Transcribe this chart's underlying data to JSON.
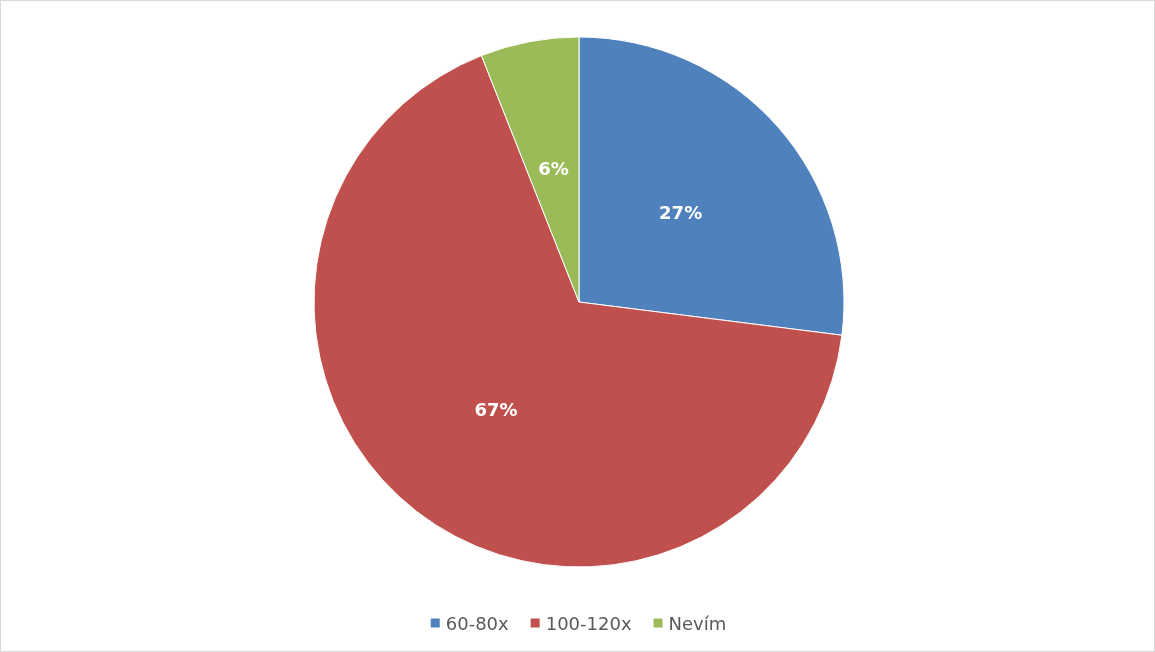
{
  "chart_data": {
    "type": "pie",
    "categories": [
      "60-80x",
      "100-120x",
      "Nevím"
    ],
    "values": [
      27,
      67,
      6
    ],
    "colors": [
      "#4f81bd",
      "#c0504d",
      "#9bbb59"
    ],
    "value_labels": [
      "27%",
      "67%",
      "6%"
    ],
    "legend": "bottom"
  }
}
